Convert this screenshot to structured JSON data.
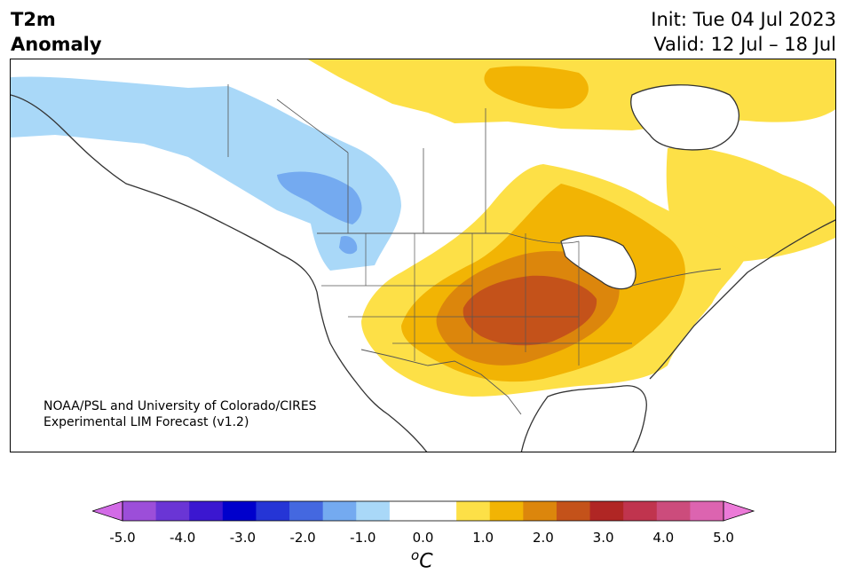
{
  "header": {
    "title_line1": "T2m",
    "title_line2": "Anomaly",
    "init": "Init: Tue 04 Jul 2023",
    "valid": "Valid: 12 Jul – 18 Jul"
  },
  "map": {
    "region": "North America",
    "credit_line1": "NOAA/PSL and University of Colorado/CIRES",
    "credit_line2": "Experimental LIM Forecast (v1.2)"
  },
  "colorbar": {
    "unit_base": "C",
    "unit_sup": "o",
    "tick_labels": [
      "-5.0",
      "-4.0",
      "-3.0",
      "-2.0",
      "-1.0",
      "0.0",
      "1.0",
      "2.0",
      "3.0",
      "4.0",
      "5.0"
    ],
    "colors": [
      "#d26be6",
      "#9c4ed9",
      "#6a35d5",
      "#3b17d0",
      "#0000cc",
      "#2535d6",
      "#4468e0",
      "#74aaf0",
      "#a9d8f8",
      "#ffffff",
      "#ffffff",
      "#fde047",
      "#f2b404",
      "#dc860c",
      "#c4521a",
      "#b02624",
      "#c0344e",
      "#cc4c7c",
      "#dc64b0",
      "#ec7ad8"
    ]
  }
}
